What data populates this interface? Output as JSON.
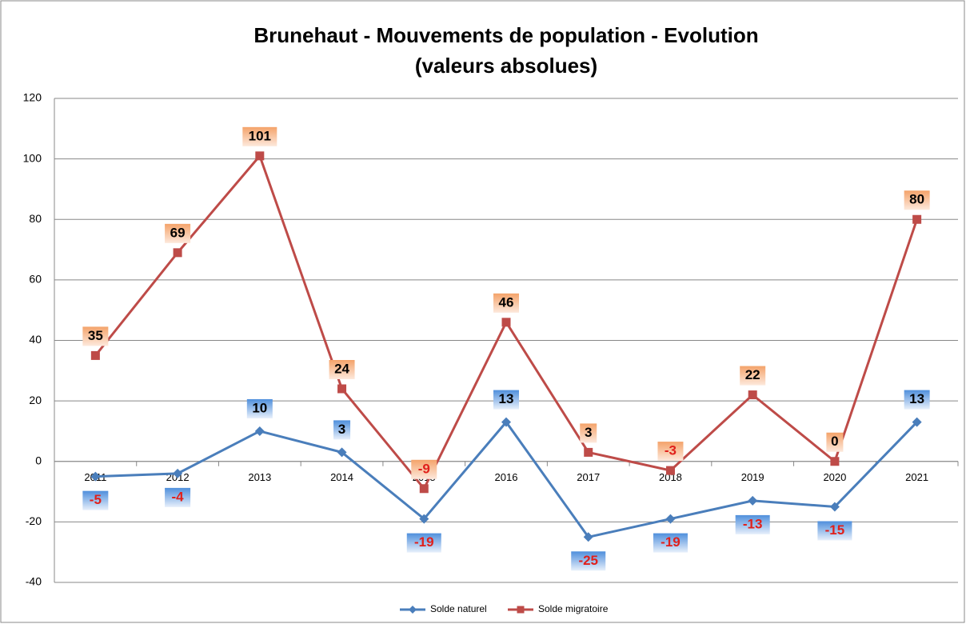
{
  "chart_data": {
    "type": "line",
    "title": "Brunehaut - Mouvements de population - Evolution",
    "subtitle": "(valeurs absolues)",
    "categories": [
      "2011",
      "2012",
      "2013",
      "2014",
      "2015",
      "2016",
      "2017",
      "2018",
      "2019",
      "2020",
      "2021"
    ],
    "series": [
      {
        "name": "Solde naturel",
        "color": "#4a7ebb",
        "values": [
          -5,
          -4,
          10,
          3,
          -19,
          13,
          -25,
          -19,
          -13,
          -15,
          13
        ]
      },
      {
        "name": "Solde migratoire",
        "color": "#be4b48",
        "values": [
          35,
          69,
          101,
          24,
          -9,
          46,
          3,
          -3,
          22,
          0,
          80
        ]
      }
    ],
    "ylim": [
      -40,
      120
    ],
    "yticks": [
      -40,
      -20,
      0,
      20,
      40,
      60,
      80,
      100,
      120
    ],
    "grid": true,
    "legend": "bottom"
  }
}
